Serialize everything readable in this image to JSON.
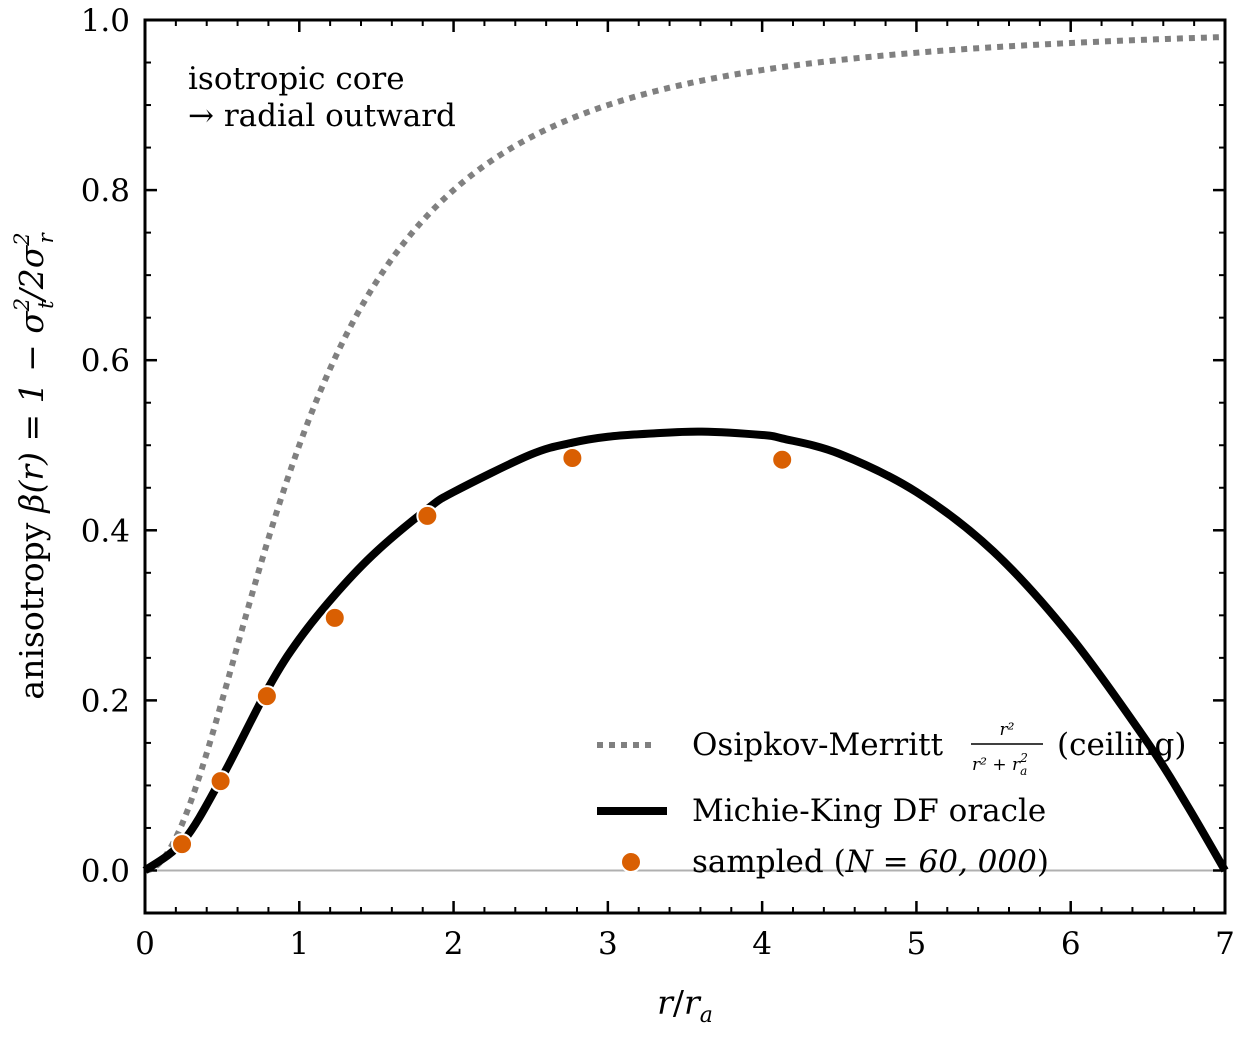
{
  "chart_data": {
    "type": "line",
    "xlabel": "r/r_a",
    "ylabel": "anisotropy β(r) = 1 − σ_t²/2σ_r²",
    "xlim": [
      0,
      7
    ],
    "ylim": [
      -0.05,
      1.0
    ],
    "xticks": [
      "0",
      "1",
      "2",
      "3",
      "4",
      "5",
      "6",
      "7"
    ],
    "yticks": [
      "0.0",
      "0.2",
      "0.4",
      "0.6",
      "0.8",
      "1.0"
    ],
    "grid": false,
    "legend_position": "lower-right",
    "annotation": [
      "isotropic core",
      "→ radial outward"
    ],
    "series": [
      {
        "name": "Osipkov-Merritt r²/(r²+r_a²) (ceiling)",
        "style": "dotted",
        "color": "#808080",
        "formula": "x^2/(x^2+1)"
      },
      {
        "name": "Michie-King DF oracle",
        "style": "solid",
        "color": "#000000",
        "x": [
          0,
          0.25,
          0.5,
          0.8,
          1.0,
          1.25,
          1.5,
          1.83,
          2.0,
          2.5,
          2.77,
          3.0,
          3.3,
          3.61,
          4.0,
          4.13,
          4.5,
          5.0,
          5.5,
          6.0,
          6.5,
          6.75,
          7.0
        ],
        "y": [
          0.0,
          0.035,
          0.11,
          0.215,
          0.272,
          0.328,
          0.375,
          0.425,
          0.445,
          0.489,
          0.503,
          0.51,
          0.514,
          0.516,
          0.512,
          0.508,
          0.49,
          0.445,
          0.375,
          0.275,
          0.15,
          0.078,
          0.0
        ]
      },
      {
        "name": "sampled (N = 60,000)",
        "style": "markers",
        "color": "#d95f02",
        "x": [
          0.24,
          0.49,
          0.79,
          1.23,
          1.83,
          2.77,
          4.13
        ],
        "y": [
          0.031,
          0.105,
          0.205,
          0.297,
          0.417,
          0.485,
          0.483
        ]
      }
    ]
  },
  "legend": {
    "om_main": "Osipkov-Merritt",
    "om_num": "r²",
    "om_den": "r² + r",
    "om_den_sub": "a",
    "om_den_sup": "2",
    "om_tail": "(ceiling)",
    "mk": "Michie-King DF oracle",
    "sampled_main": "sampled (",
    "sampled_math": "N = 60, 000",
    "sampled_close": ")"
  },
  "axes_text": {
    "xlabel_r": "r",
    "xlabel_slash": "/",
    "xlabel_ra": "r",
    "xlabel_ra_sub": "a",
    "ylabel_word": "anisotropy",
    "ylabel_math": "β(r) = 1 − σ",
    "ylabel_t_sup": "2",
    "ylabel_t_sub": "t",
    "ylabel_mid": "/2σ",
    "ylabel_r_sup": "2",
    "ylabel_r_sub": "r"
  }
}
